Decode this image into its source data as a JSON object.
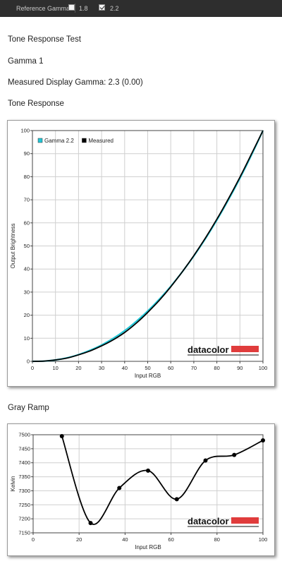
{
  "toolbar": {
    "reference_label": "Reference Gamma:",
    "options": [
      {
        "label": "1.8",
        "checked": false
      },
      {
        "label": "2.2",
        "checked": true
      }
    ]
  },
  "headings": {
    "test_title": "Tone Response Test",
    "gamma_name": "Gamma 1",
    "measured": "Measured Display Gamma: 2.3 (0.00)",
    "tone_response": "Tone Response",
    "gray_ramp": "Gray Ramp"
  },
  "logo_text": "datacolor",
  "colors": {
    "reference": "#22c6d6",
    "measured": "#000000",
    "logo_bar": "#e03c3c"
  },
  "chart_data": [
    {
      "type": "line",
      "title": "Tone Response",
      "xlabel": "Input RGB",
      "ylabel": "Output Brightness",
      "xlim": [
        0,
        100
      ],
      "ylim": [
        0,
        100
      ],
      "xticks": [
        0,
        10,
        20,
        30,
        40,
        50,
        60,
        70,
        80,
        90,
        100
      ],
      "yticks": [
        0,
        10,
        20,
        30,
        40,
        50,
        60,
        70,
        80,
        90,
        100
      ],
      "grid": true,
      "legend": "top-left",
      "series": [
        {
          "name": "Gamma 2.2",
          "color": "#22c6d6",
          "x": [
            0,
            5,
            10,
            15,
            20,
            25,
            30,
            35,
            40,
            45,
            50,
            55,
            60,
            65,
            70,
            75,
            80,
            85,
            90,
            95,
            100
          ],
          "y": [
            0,
            0.1,
            0.6,
            1.5,
            2.9,
            4.8,
            7.1,
            9.9,
            13.3,
            17.3,
            21.8,
            26.9,
            32.5,
            38.8,
            45.6,
            53.1,
            61.2,
            69.9,
            79.3,
            89.3,
            100
          ]
        },
        {
          "name": "Measured",
          "color": "#000000",
          "x": [
            0,
            5,
            10,
            15,
            20,
            25,
            30,
            35,
            40,
            45,
            50,
            55,
            60,
            65,
            70,
            75,
            80,
            85,
            90,
            95,
            100
          ],
          "y": [
            0,
            0.1,
            0.6,
            1.4,
            2.8,
            4.5,
            6.7,
            9.3,
            12.5,
            16.5,
            21.2,
            26.4,
            32.3,
            38.8,
            45.8,
            53.4,
            61.6,
            70.4,
            79.8,
            89.8,
            100
          ]
        }
      ]
    },
    {
      "type": "line",
      "title": "Gray Ramp",
      "xlabel": "Input RGB",
      "ylabel": "Kelvin",
      "xlim": [
        0,
        100
      ],
      "ylim": [
        7150,
        7500
      ],
      "xticks": [
        0,
        20,
        40,
        60,
        80,
        100
      ],
      "yticks": [
        7150,
        7200,
        7250,
        7300,
        7350,
        7400,
        7450,
        7500
      ],
      "grid": true,
      "series": [
        {
          "name": "",
          "color": "#000000",
          "x": [
            12.5,
            25,
            37.5,
            50,
            62.5,
            75,
            87.5,
            100
          ],
          "y": [
            7495,
            7185,
            7310,
            7372,
            7270,
            7408,
            7428,
            7480
          ]
        }
      ]
    }
  ]
}
